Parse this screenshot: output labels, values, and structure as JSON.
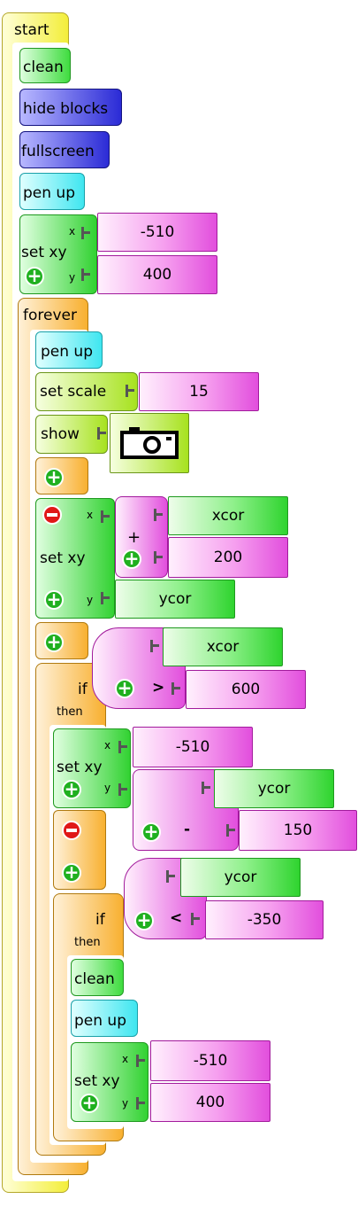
{
  "start": {
    "label": "start"
  },
  "setup": {
    "clean": "clean",
    "hide_blocks": "hide blocks",
    "fullscreen": "fullscreen",
    "pen_up": "pen up",
    "setxy": {
      "label": "set xy",
      "x_label": "x",
      "y_label": "y",
      "x_value": "-510",
      "y_value": "400"
    }
  },
  "forever": {
    "label": "forever",
    "pen_up": "pen up",
    "set_scale": {
      "label": "set scale",
      "value": "15"
    },
    "show": {
      "label": "show",
      "media": "camera-icon"
    },
    "setxy": {
      "label": "set xy",
      "x_label": "x",
      "y_label": "y",
      "op": "+",
      "x_arg1": "xcor",
      "x_arg2": "200",
      "y_value": "ycor"
    },
    "if1": {
      "label": "if",
      "then": "then",
      "cond": {
        "left": "xcor",
        "op": ">",
        "right": "600"
      },
      "setxy": {
        "label": "set xy",
        "x_label": "x",
        "y_label": "y",
        "x_value": "-510",
        "y_left": "ycor",
        "y_op": "-",
        "y_right": "150"
      },
      "if2": {
        "label": "if",
        "then": "then",
        "cond": {
          "left": "ycor",
          "op": "<",
          "right": "-350"
        },
        "clean": "clean",
        "pen_up": "pen up",
        "setxy": {
          "label": "set xy",
          "x_label": "x",
          "y_label": "y",
          "x_value": "-510",
          "y_value": "400"
        }
      }
    }
  },
  "colors": {
    "start": "#f5f040",
    "clean": "#3fdc3f",
    "hide": "#2b2bd6",
    "pen": "#3fe6f0",
    "orange": "#f8b030",
    "green": "#32d232",
    "magenta": "#e33ce0",
    "lime": "#a7e21f"
  }
}
